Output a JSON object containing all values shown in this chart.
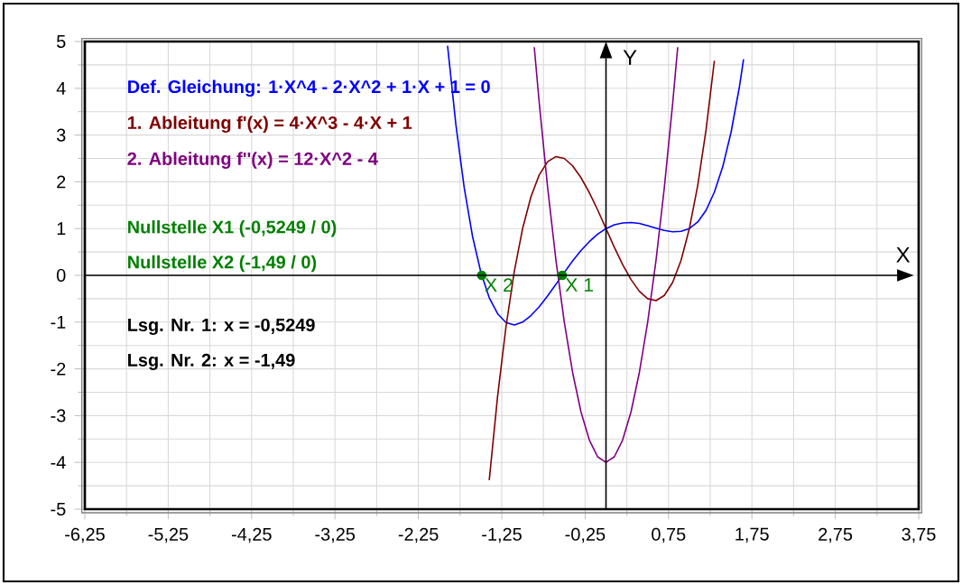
{
  "chart_data": {
    "type": "line",
    "xlabel": "X",
    "ylabel": "Y",
    "xlim": [
      -6.25,
      3.75
    ],
    "ylim": [
      -5,
      5
    ],
    "xticks": [
      {
        "value": -6.25,
        "label": "-6,25"
      },
      {
        "value": -5.25,
        "label": "-5,25"
      },
      {
        "value": -4.25,
        "label": "-4,25"
      },
      {
        "value": -3.25,
        "label": "-3,25"
      },
      {
        "value": -2.25,
        "label": "-2,25"
      },
      {
        "value": -1.25,
        "label": "-1,25"
      },
      {
        "value": -0.25,
        "label": "-0,25"
      },
      {
        "value": 0.75,
        "label": "0,75"
      },
      {
        "value": 1.75,
        "label": "1,75"
      },
      {
        "value": 2.75,
        "label": "2,75"
      },
      {
        "value": 3.75,
        "label": "3,75"
      }
    ],
    "yticks": [
      -5,
      -4,
      -3,
      -2,
      -1,
      0,
      1,
      2,
      3,
      4,
      5
    ],
    "grid": true,
    "legend": "top left",
    "marker": "none",
    "line_style": "solid",
    "series": [
      {
        "name": "Def. Gleichung: 1·X^4 - 2·X^2 + 1·X + 1 = 0",
        "color": "#0000ff",
        "x": [
          -1.9,
          -1.8,
          -1.7,
          -1.6,
          -1.5,
          -1.4,
          -1.3,
          -1.2,
          -1.1,
          -1.0,
          -0.9,
          -0.8,
          -0.7,
          -0.6,
          -0.5,
          -0.4,
          -0.3,
          -0.2,
          -0.1,
          0,
          0.1,
          0.2,
          0.3,
          0.4,
          0.5,
          0.6,
          0.7,
          0.8,
          0.9,
          1.0,
          1.1,
          1.2,
          1.3,
          1.4,
          1.5,
          1.6,
          1.65
        ],
        "values": [
          4.91,
          3.22,
          1.87,
          0.83,
          0.06,
          -0.48,
          -0.82,
          -1.01,
          -1.06,
          -1.0,
          -0.86,
          -0.67,
          -0.44,
          -0.19,
          0.06,
          0.31,
          0.53,
          0.72,
          0.88,
          1.0,
          1.08,
          1.12,
          1.13,
          1.11,
          1.06,
          1.01,
          0.96,
          0.93,
          0.94,
          1.0,
          1.14,
          1.39,
          1.78,
          2.32,
          3.06,
          4.03,
          4.62
        ]
      },
      {
        "name": "1. Ableitung f'(x) = 4·X^3 - 4·X + 1",
        "color": "#800000",
        "x": [
          -1.4,
          -1.3,
          -1.2,
          -1.1,
          -1.0,
          -0.9,
          -0.8,
          -0.7,
          -0.6,
          -0.5,
          -0.4,
          -0.3,
          -0.2,
          -0.1,
          0,
          0.1,
          0.2,
          0.3,
          0.4,
          0.5,
          0.6,
          0.7,
          0.8,
          0.9,
          1.0,
          1.1,
          1.2,
          1.3
        ],
        "values": [
          -4.38,
          -2.59,
          -1.11,
          0.08,
          1.0,
          1.68,
          2.15,
          2.43,
          2.54,
          2.5,
          2.34,
          2.09,
          1.77,
          1.4,
          1.0,
          0.6,
          0.23,
          -0.09,
          -0.34,
          -0.5,
          -0.54,
          -0.43,
          -0.15,
          0.32,
          1.0,
          1.92,
          3.11,
          4.59
        ]
      },
      {
        "name": "2. Ableitung f''(x) = 12·X^2 - 4",
        "color": "#800080",
        "x": [
          -0.86,
          -0.8,
          -0.7,
          -0.6,
          -0.5,
          -0.4,
          -0.3,
          -0.2,
          -0.1,
          0,
          0.1,
          0.2,
          0.3,
          0.4,
          0.5,
          0.6,
          0.7,
          0.8,
          0.86
        ],
        "values": [
          4.88,
          3.68,
          1.88,
          0.32,
          -1.0,
          -2.08,
          -2.92,
          -3.52,
          -3.88,
          -4.0,
          -3.88,
          -3.52,
          -2.92,
          -2.08,
          -1.0,
          0.32,
          1.88,
          3.68,
          4.88
        ]
      },
      {
        "type": "scatter",
        "marker": "circle",
        "color": "#008000",
        "x": [
          -0.5249,
          -1.49
        ],
        "values": [
          0,
          0
        ]
      }
    ],
    "annotations": [
      "Nullstelle X1 (-0,5249 / 0)",
      "Nullstelle X2 (-1,49 / 0)",
      "Lsg. Nr. 1: x = -0,5249",
      "Lsg. Nr. 2: x = -1,49",
      {
        "text": "X 1",
        "x": -0.5249,
        "y": 0
      },
      {
        "text": "X 2",
        "x": -1.49,
        "y": 0
      }
    ]
  }
}
